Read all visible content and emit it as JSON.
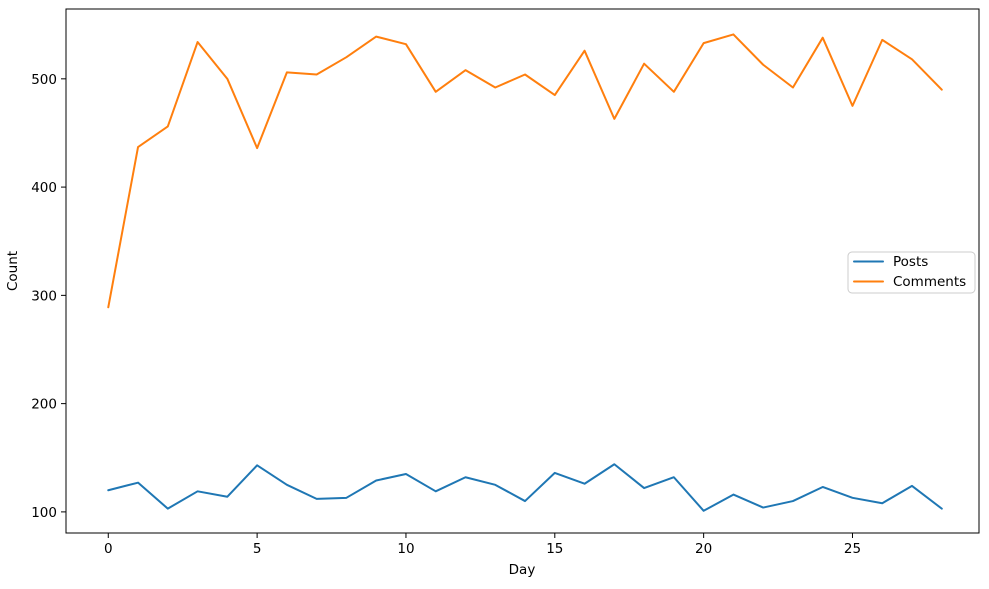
{
  "figure": {
    "background": "#ffffff",
    "text_color": "#000000",
    "spine_color": "#000000"
  },
  "chart_data": {
    "type": "line",
    "title": "",
    "xlabel": "Day",
    "ylabel": "Count",
    "x": [
      0,
      1,
      2,
      3,
      4,
      5,
      6,
      7,
      8,
      9,
      10,
      11,
      12,
      13,
      14,
      15,
      16,
      17,
      18,
      19,
      20,
      21,
      22,
      23,
      24,
      25,
      26,
      27,
      28
    ],
    "series": [
      {
        "name": "Posts",
        "color": "#1f77b4",
        "values": [
          120,
          127,
          103,
          119,
          114,
          143,
          125,
          112,
          113,
          129,
          135,
          119,
          132,
          125,
          110,
          136,
          126,
          144,
          122,
          132,
          101,
          116,
          104,
          110,
          123,
          113,
          108,
          124,
          103
        ]
      },
      {
        "name": "Comments",
        "color": "#ff7f0e",
        "values": [
          289,
          437,
          456,
          534,
          500,
          436,
          506,
          504,
          520,
          539,
          532,
          488,
          508,
          492,
          504,
          485,
          526,
          463,
          514,
          488,
          533,
          541,
          513,
          492,
          538,
          475,
          536,
          518,
          490
        ]
      }
    ],
    "xlim": [
      -1.42,
      29.25
    ],
    "ylim": [
      80.5,
      564.5
    ],
    "xticks": [
      0,
      5,
      10,
      15,
      20,
      25
    ],
    "xtick_labels": [
      "0",
      "5",
      "10",
      "15",
      "20",
      "25"
    ],
    "yticks": [
      100,
      200,
      300,
      400,
      500
    ],
    "ytick_labels": [
      "100",
      "200",
      "300",
      "400",
      "500"
    ],
    "grid": false,
    "legend": {
      "position": "center-right",
      "entries": [
        "Posts",
        "Comments"
      ],
      "border_color": "#cccccc",
      "background": "#ffffff"
    }
  }
}
